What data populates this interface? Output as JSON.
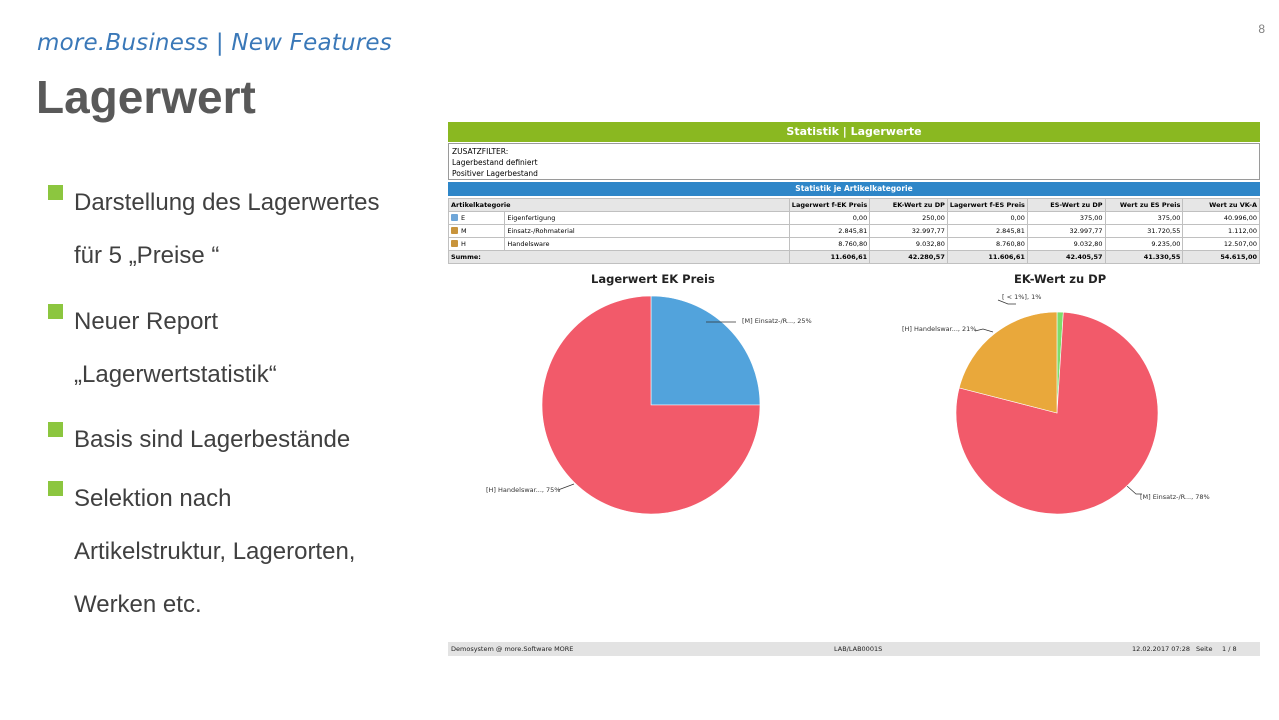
{
  "page_number": "8",
  "header": {
    "subtitle": "more.Business | New Features",
    "title": "Lagerwert"
  },
  "bullets": [
    [
      "Darstellung des Lagerwertes",
      "für 5 „Preise “"
    ],
    [
      "Neuer Report",
      "„Lagerwertstatistik“"
    ],
    [
      "Basis sind Lagerbestände"
    ],
    [
      "Selektion nach",
      "Artikelstruktur, Lagerorten,",
      "Werken etc."
    ]
  ],
  "colors": {
    "accent_green": "#8cc63f",
    "report_header_green": "#8ab821",
    "report_blue": "#2e86c8",
    "pie_red": "#f25a6a",
    "pie_blue": "#52a3dc",
    "pie_orange": "#e9a83b",
    "pie_green": "#7edc6a"
  },
  "report": {
    "title": "Statistik | Lagerwerte",
    "filter_lines": [
      "ZUSATZFILTER:",
      "Lagerbestand definiert",
      "Positiver Lagerbestand"
    ],
    "section_title": "Statistik je Artikelkategorie",
    "columns": [
      "Artikelkategorie",
      "",
      "Lagerwert f-EK Preis",
      "EK-Wert zu DP",
      "Lagerwert f-ES Preis",
      "ES-Wert zu DP",
      "Wert zu ES Preis",
      "Wert zu VK-A"
    ],
    "rows": [
      {
        "icon": "product-icon",
        "code": "E",
        "name": "Eigenfertigung",
        "values": [
          "0,00",
          "250,00",
          "0,00",
          "375,00",
          "375,00",
          "40.996,00"
        ]
      },
      {
        "icon": "worker-icon",
        "code": "M",
        "name": "Einsatz-/Rohmaterial",
        "values": [
          "2.845,81",
          "32.997,77",
          "2.845,81",
          "32.997,77",
          "31.720,55",
          "1.112,00"
        ]
      },
      {
        "icon": "worker-icon",
        "code": "H",
        "name": "Handelsware",
        "values": [
          "8.760,80",
          "9.032,80",
          "8.760,80",
          "9.032,80",
          "9.235,00",
          "12.507,00"
        ]
      }
    ],
    "sum": {
      "label": "Summe:",
      "values": [
        "11.606,61",
        "42.280,57",
        "11.606,61",
        "42.405,57",
        "41.330,55",
        "54.615,00"
      ]
    },
    "footer": {
      "left": "Demosystem @ more.Software MORE",
      "center": "LAB/LAB0001S",
      "date": "12.02.2017 07:28",
      "page_label": "Seite",
      "page_value": "1  /  8"
    }
  },
  "chart_data": [
    {
      "type": "pie",
      "title": "Lagerwert   EK Preis",
      "slices": [
        {
          "label": "[M] Einsatz-/R..., 25%",
          "value": 25,
          "color": "#52a3dc"
        },
        {
          "label": "[H] Handelswar..., 75%",
          "value": 75,
          "color": "#f25a6a"
        }
      ]
    },
    {
      "type": "pie",
      "title": "EK-Wert zu DP",
      "slices": [
        {
          "label": "[ < 1%], 1%",
          "value": 1,
          "color": "#7edc6a"
        },
        {
          "label": "[M] Einsatz-/R..., 78%",
          "value": 78,
          "color": "#f25a6a"
        },
        {
          "label": "[H] Handelswar..., 21%",
          "value": 21,
          "color": "#e9a83b"
        }
      ]
    }
  ]
}
